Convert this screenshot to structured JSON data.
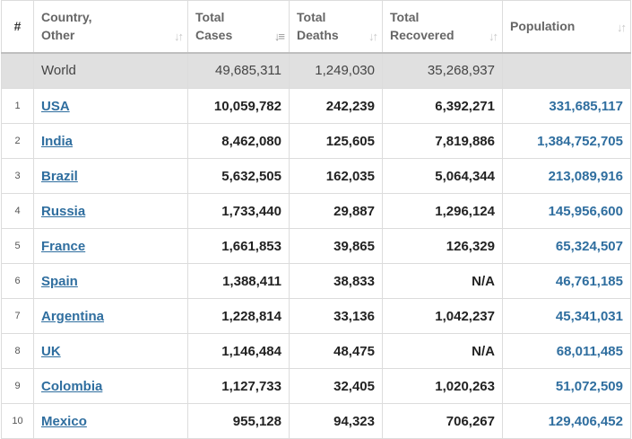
{
  "headers": {
    "rank": "#",
    "country_line1": "Country,",
    "country_line2": "Other",
    "cases_line1": "Total",
    "cases_line2": "Cases",
    "deaths_line1": "Total",
    "deaths_line2": "Deaths",
    "recovered_line1": "Total",
    "recovered_line2": "Recovered",
    "population": "Population"
  },
  "world": {
    "country": "World",
    "total_cases": "49,685,311",
    "total_deaths": "1,249,030",
    "total_recovered": "35,268,937",
    "population": ""
  },
  "rows": [
    {
      "rank": "1",
      "country": "USA",
      "total_cases": "10,059,782",
      "total_deaths": "242,239",
      "total_recovered": "6,392,271",
      "population": "331,685,117"
    },
    {
      "rank": "2",
      "country": "India",
      "total_cases": "8,462,080",
      "total_deaths": "125,605",
      "total_recovered": "7,819,886",
      "population": "1,384,752,705"
    },
    {
      "rank": "3",
      "country": "Brazil",
      "total_cases": "5,632,505",
      "total_deaths": "162,035",
      "total_recovered": "5,064,344",
      "population": "213,089,916"
    },
    {
      "rank": "4",
      "country": "Russia",
      "total_cases": "1,733,440",
      "total_deaths": "29,887",
      "total_recovered": "1,296,124",
      "population": "145,956,600"
    },
    {
      "rank": "5",
      "country": "France",
      "total_cases": "1,661,853",
      "total_deaths": "39,865",
      "total_recovered": "126,329",
      "population": "65,324,507"
    },
    {
      "rank": "6",
      "country": "Spain",
      "total_cases": "1,388,411",
      "total_deaths": "38,833",
      "total_recovered": "N/A",
      "population": "46,761,185"
    },
    {
      "rank": "7",
      "country": "Argentina",
      "total_cases": "1,228,814",
      "total_deaths": "33,136",
      "total_recovered": "1,042,237",
      "population": "45,341,031"
    },
    {
      "rank": "8",
      "country": "UK",
      "total_cases": "1,146,484",
      "total_deaths": "48,475",
      "total_recovered": "N/A",
      "population": "68,011,485"
    },
    {
      "rank": "9",
      "country": "Colombia",
      "total_cases": "1,127,733",
      "total_deaths": "32,405",
      "total_recovered": "1,020,263",
      "population": "51,072,509"
    },
    {
      "rank": "10",
      "country": "Mexico",
      "total_cases": "955,128",
      "total_deaths": "94,323",
      "total_recovered": "706,267",
      "population": "129,406,452"
    }
  ],
  "icons": {
    "sort": "sort-arrows-icon",
    "sort_active": "sort-descending-icon"
  },
  "colors": {
    "link": "#2f6e9f",
    "world_row_bg": "#e0e0e0",
    "header_text": "#666666"
  }
}
